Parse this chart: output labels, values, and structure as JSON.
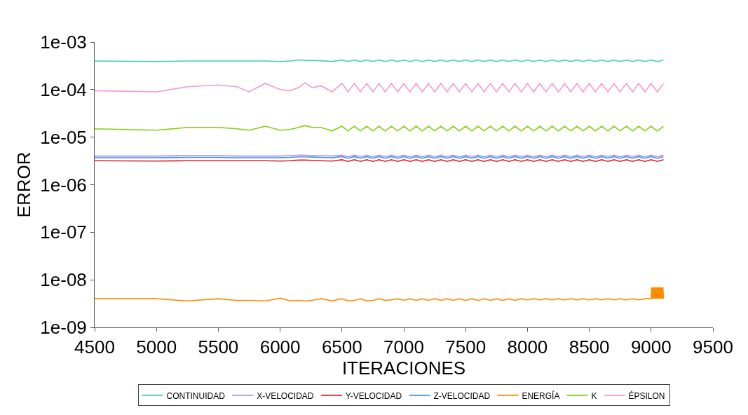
{
  "chart_data": {
    "type": "line",
    "xlabel": "ITERACIONES",
    "ylabel": "ERROR",
    "log": "y",
    "legend": "bottom",
    "marker": "none",
    "line_style": "solid",
    "xlim": [
      4500,
      9500
    ],
    "xticks": [
      4500,
      5000,
      5500,
      6000,
      6500,
      7000,
      7500,
      8000,
      8500,
      9000,
      9500
    ],
    "ylim": [
      1e-09,
      0.001
    ],
    "yticks": [
      {
        "value": 1e-09,
        "label": "1e-09"
      },
      {
        "value": 1e-08,
        "label": "1e-08"
      },
      {
        "value": 1e-07,
        "label": "1e-07"
      },
      {
        "value": 1e-06,
        "label": "1e-06"
      },
      {
        "value": 1e-05,
        "label": "1e-05"
      },
      {
        "value": 0.0001,
        "label": "1e-04"
      },
      {
        "value": 0.001,
        "label": "1e-03"
      }
    ],
    "x": [
      4500,
      5000,
      5250,
      5500,
      5650,
      5750,
      5880,
      6000,
      6080,
      6150,
      6200,
      6260,
      6330,
      6420,
      6500,
      6550,
      6600,
      6650,
      6700,
      6750,
      6800,
      6850,
      6900,
      6950,
      7000,
      7050,
      7100,
      7150,
      7200,
      7250,
      7300,
      7350,
      7400,
      7450,
      7500,
      7550,
      7600,
      7650,
      7700,
      7750,
      7800,
      7850,
      7900,
      7950,
      8000,
      8050,
      8100,
      8150,
      8200,
      8250,
      8300,
      8350,
      8400,
      8450,
      8500,
      8550,
      8600,
      8650,
      8700,
      8750,
      8800,
      8850,
      8900,
      8950,
      9000,
      9050,
      9100
    ],
    "series": [
      {
        "name": "CONTINUIDAD",
        "color": "#40d0b0",
        "values": [
          0.0004,
          0.00039,
          0.0004,
          0.0004,
          0.0004,
          0.0004,
          0.0004,
          0.00039,
          0.0004,
          0.00042,
          0.00041,
          0.00041,
          0.000405,
          0.00039,
          0.00042,
          0.00039,
          0.00042,
          0.00039,
          0.00042,
          0.00039,
          0.00042,
          0.00039,
          0.00042,
          0.00039,
          0.00042,
          0.00039,
          0.00042,
          0.00039,
          0.00042,
          0.00039,
          0.00042,
          0.00039,
          0.00042,
          0.00039,
          0.00042,
          0.00039,
          0.00042,
          0.00039,
          0.00042,
          0.00039,
          0.00042,
          0.00039,
          0.00042,
          0.00039,
          0.00042,
          0.00039,
          0.00042,
          0.00039,
          0.00042,
          0.00039,
          0.00042,
          0.00039,
          0.00042,
          0.00039,
          0.00042,
          0.00039,
          0.00042,
          0.00039,
          0.00042,
          0.00039,
          0.00042,
          0.00039,
          0.00042,
          0.00039,
          0.00042,
          0.00039,
          0.00042
        ]
      },
      {
        "name": "X-VELOCIDAD",
        "color": "#a898e8",
        "values": [
          4e-06,
          4e-06,
          4.1e-06,
          4.1e-06,
          4e-06,
          4e-06,
          4e-06,
          4e-06,
          4.1e-06,
          4.2e-06,
          4.2e-06,
          4.1e-06,
          4.1e-06,
          4e-06,
          4.2e-06,
          3.9e-06,
          4.2e-06,
          3.9e-06,
          4.2e-06,
          3.9e-06,
          4.2e-06,
          3.9e-06,
          4.2e-06,
          3.9e-06,
          4.2e-06,
          3.9e-06,
          4.2e-06,
          3.9e-06,
          4.2e-06,
          3.9e-06,
          4.2e-06,
          3.9e-06,
          4.2e-06,
          3.9e-06,
          4.2e-06,
          3.9e-06,
          4.2e-06,
          3.9e-06,
          4.2e-06,
          3.9e-06,
          4.2e-06,
          3.9e-06,
          4.2e-06,
          3.9e-06,
          4.2e-06,
          3.9e-06,
          4.2e-06,
          3.9e-06,
          4.2e-06,
          3.9e-06,
          4.2e-06,
          3.9e-06,
          4.2e-06,
          3.9e-06,
          4.2e-06,
          3.9e-06,
          4.2e-06,
          3.9e-06,
          4.2e-06,
          3.9e-06,
          4.2e-06,
          3.9e-06,
          4.2e-06,
          3.9e-06,
          4.2e-06,
          3.9e-06,
          4.2e-06
        ]
      },
      {
        "name": "Y-VELOCIDAD",
        "color": "#e82020",
        "values": [
          3.2e-06,
          3.15e-06,
          3.2e-06,
          3.2e-06,
          3.2e-06,
          3.2e-06,
          3.2e-06,
          3.15e-06,
          3.2e-06,
          3.3e-06,
          3.3e-06,
          3.25e-06,
          3.2e-06,
          3.15e-06,
          3.35e-06,
          3.1e-06,
          3.35e-06,
          3.1e-06,
          3.35e-06,
          3.1e-06,
          3.35e-06,
          3.1e-06,
          3.35e-06,
          3.1e-06,
          3.35e-06,
          3.1e-06,
          3.35e-06,
          3.1e-06,
          3.35e-06,
          3.1e-06,
          3.35e-06,
          3.1e-06,
          3.35e-06,
          3.1e-06,
          3.35e-06,
          3.1e-06,
          3.35e-06,
          3.1e-06,
          3.35e-06,
          3.1e-06,
          3.35e-06,
          3.1e-06,
          3.35e-06,
          3.1e-06,
          3.35e-06,
          3.1e-06,
          3.35e-06,
          3.1e-06,
          3.35e-06,
          3.1e-06,
          3.35e-06,
          3.1e-06,
          3.35e-06,
          3.1e-06,
          3.35e-06,
          3.1e-06,
          3.35e-06,
          3.1e-06,
          3.35e-06,
          3.1e-06,
          3.35e-06,
          3.1e-06,
          3.35e-06,
          3.1e-06,
          3.35e-06,
          3.1e-06,
          3.35e-06
        ]
      },
      {
        "name": "Z-VELOCIDAD",
        "color": "#4a90e2",
        "values": [
          3.7e-06,
          3.7e-06,
          3.75e-06,
          3.75e-06,
          3.7e-06,
          3.7e-06,
          3.7e-06,
          3.7e-06,
          3.75e-06,
          3.85e-06,
          3.85e-06,
          3.8e-06,
          3.75e-06,
          3.7e-06,
          3.9e-06,
          3.6e-06,
          3.9e-06,
          3.6e-06,
          3.9e-06,
          3.6e-06,
          3.9e-06,
          3.6e-06,
          3.9e-06,
          3.6e-06,
          3.9e-06,
          3.6e-06,
          3.9e-06,
          3.6e-06,
          3.9e-06,
          3.6e-06,
          3.9e-06,
          3.6e-06,
          3.9e-06,
          3.6e-06,
          3.9e-06,
          3.6e-06,
          3.9e-06,
          3.6e-06,
          3.9e-06,
          3.6e-06,
          3.9e-06,
          3.6e-06,
          3.9e-06,
          3.6e-06,
          3.9e-06,
          3.6e-06,
          3.9e-06,
          3.6e-06,
          3.9e-06,
          3.6e-06,
          3.9e-06,
          3.6e-06,
          3.9e-06,
          3.6e-06,
          3.9e-06,
          3.6e-06,
          3.9e-06,
          3.6e-06,
          3.9e-06,
          3.6e-06,
          3.9e-06,
          3.6e-06,
          3.9e-06,
          3.6e-06,
          3.9e-06,
          3.6e-06,
          3.9e-06
        ]
      },
      {
        "name": "ENERGÍA",
        "color": "#ff8c00",
        "x": [
          4500,
          5000,
          5250,
          5500,
          5650,
          5750,
          5880,
          6000,
          6080,
          6150,
          6200,
          6260,
          6330,
          6420,
          6500,
          6550,
          6600,
          6650,
          6700,
          6750,
          6800,
          6850,
          6900,
          6950,
          7000,
          7050,
          7100,
          7150,
          7200,
          7250,
          7300,
          7350,
          7400,
          7450,
          7500,
          7550,
          7600,
          7650,
          7700,
          7750,
          7800,
          7850,
          7900,
          7950,
          8000,
          8050,
          8100,
          8150,
          8200,
          8250,
          8300,
          8350,
          8400,
          8450,
          8500,
          8550,
          8600,
          8650,
          8700,
          8750,
          8800,
          8850,
          8900,
          8950,
          9000,
          9005,
          9010,
          9015,
          9020,
          9025,
          9030,
          9035,
          9040,
          9045,
          9050,
          9055,
          9060,
          9065,
          9070,
          9075,
          9080,
          9085,
          9090,
          9095,
          9100
        ],
        "values": [
          4e-09,
          4e-09,
          3.6e-09,
          4e-09,
          3.7e-09,
          3.7e-09,
          3.6e-09,
          4.1e-09,
          3.6e-09,
          3.7e-09,
          3.6e-09,
          3.7e-09,
          4e-09,
          3.6e-09,
          4e-09,
          3.6e-09,
          3.7e-09,
          4e-09,
          3.6e-09,
          3.7e-09,
          4e-09,
          3.7e-09,
          3.8e-09,
          4e-09,
          3.7e-09,
          4e-09,
          3.7e-09,
          4e-09,
          3.7e-09,
          4e-09,
          3.7e-09,
          4e-09,
          3.7e-09,
          4e-09,
          3.7e-09,
          4e-09,
          3.7e-09,
          4e-09,
          3.7e-09,
          4e-09,
          3.7e-09,
          4e-09,
          3.7e-09,
          4e-09,
          3.8e-09,
          4e-09,
          3.8e-09,
          4e-09,
          3.8e-09,
          4e-09,
          3.8e-09,
          4e-09,
          3.8e-09,
          4e-09,
          3.8e-09,
          4e-09,
          3.8e-09,
          4e-09,
          3.8e-09,
          4e-09,
          3.8e-09,
          4e-09,
          3.8e-09,
          4e-09,
          4e-09,
          7e-09,
          4e-09,
          7e-09,
          4e-09,
          7e-09,
          4e-09,
          7e-09,
          4e-09,
          7e-09,
          4e-09,
          7e-09,
          4e-09,
          7e-09,
          4e-09,
          7e-09,
          4e-09,
          7e-09,
          4e-09,
          7e-09,
          4e-09
        ]
      },
      {
        "name": "K",
        "color": "#80d010",
        "values": [
          1.5e-05,
          1.4e-05,
          1.6e-05,
          1.6e-05,
          1.5e-05,
          1.4e-05,
          1.7e-05,
          1.4e-05,
          1.45e-05,
          1.6e-05,
          1.75e-05,
          1.6e-05,
          1.6e-05,
          1.35e-05,
          1.7e-05,
          1.35e-05,
          1.7e-05,
          1.35e-05,
          1.7e-05,
          1.35e-05,
          1.7e-05,
          1.35e-05,
          1.7e-05,
          1.35e-05,
          1.7e-05,
          1.35e-05,
          1.7e-05,
          1.35e-05,
          1.7e-05,
          1.35e-05,
          1.7e-05,
          1.35e-05,
          1.7e-05,
          1.35e-05,
          1.7e-05,
          1.35e-05,
          1.7e-05,
          1.35e-05,
          1.7e-05,
          1.35e-05,
          1.7e-05,
          1.35e-05,
          1.7e-05,
          1.35e-05,
          1.7e-05,
          1.35e-05,
          1.7e-05,
          1.35e-05,
          1.7e-05,
          1.35e-05,
          1.7e-05,
          1.35e-05,
          1.7e-05,
          1.35e-05,
          1.7e-05,
          1.35e-05,
          1.7e-05,
          1.35e-05,
          1.7e-05,
          1.35e-05,
          1.7e-05,
          1.35e-05,
          1.7e-05,
          1.35e-05,
          1.7e-05,
          1.35e-05,
          1.7e-05
        ]
      },
      {
        "name": "ÉPSILON",
        "color": "#f598d0",
        "values": [
          9.5e-05,
          9e-05,
          0.000115,
          0.000125,
          0.000115,
          9e-05,
          0.000135,
          0.0001,
          9.5e-05,
          0.00011,
          0.00014,
          0.00011,
          0.00012,
          9e-05,
          0.000135,
          9e-05,
          0.000135,
          9e-05,
          0.000135,
          9e-05,
          0.000135,
          9e-05,
          0.000135,
          9e-05,
          0.000135,
          9e-05,
          0.000135,
          9e-05,
          0.000135,
          9e-05,
          0.000135,
          9e-05,
          0.000135,
          9e-05,
          0.000135,
          9e-05,
          0.000135,
          9e-05,
          0.000135,
          9e-05,
          0.000135,
          9e-05,
          0.000135,
          9e-05,
          0.000135,
          9e-05,
          0.000135,
          9e-05,
          0.000135,
          9e-05,
          0.000135,
          9e-05,
          0.000135,
          9e-05,
          0.000135,
          9e-05,
          0.000135,
          9e-05,
          0.000135,
          9e-05,
          0.000135,
          9e-05,
          0.000135,
          9e-05,
          0.000135,
          9e-05,
          0.000135
        ]
      }
    ]
  }
}
